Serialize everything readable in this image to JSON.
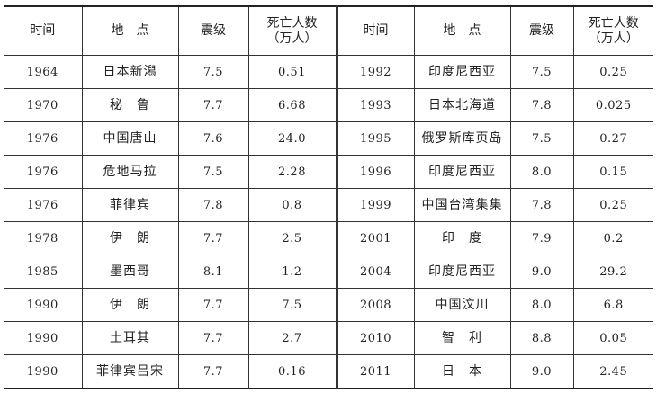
{
  "table": {
    "headers": {
      "time": "时间",
      "place": "地　点",
      "magnitude": "震级",
      "deaths_line1": "死亡人数",
      "deaths_line2": "（万人）"
    },
    "rows": [
      {
        "left": {
          "year": "1964",
          "place": "日本新潟",
          "mag": "7.5",
          "deaths": "0.51"
        },
        "right": {
          "year": "1992",
          "place": "印度尼西亚",
          "mag": "7.5",
          "deaths": "0.25"
        }
      },
      {
        "left": {
          "year": "1970",
          "place": "秘　鲁",
          "mag": "7.7",
          "deaths": "6.68"
        },
        "right": {
          "year": "1993",
          "place": "日本北海道",
          "mag": "7.8",
          "deaths": "0.025"
        }
      },
      {
        "left": {
          "year": "1976",
          "place": "中国唐山",
          "mag": "7.6",
          "deaths": "24.0"
        },
        "right": {
          "year": "1995",
          "place": "俄罗斯库页岛",
          "mag": "7.5",
          "deaths": "0.27"
        }
      },
      {
        "left": {
          "year": "1976",
          "place": "危地马拉",
          "mag": "7.5",
          "deaths": "2.28"
        },
        "right": {
          "year": "1996",
          "place": "印度尼西亚",
          "mag": "8.0",
          "deaths": "0.15"
        }
      },
      {
        "left": {
          "year": "1976",
          "place": "菲律宾",
          "mag": "7.8",
          "deaths": "0.8"
        },
        "right": {
          "year": "1999",
          "place": "中国台湾集集",
          "mag": "7.8",
          "deaths": "0.25"
        }
      },
      {
        "left": {
          "year": "1978",
          "place": "伊　朗",
          "mag": "7.7",
          "deaths": "2.5"
        },
        "right": {
          "year": "2001",
          "place": "印　度",
          "mag": "7.9",
          "deaths": "0.2"
        }
      },
      {
        "left": {
          "year": "1985",
          "place": "墨西哥",
          "mag": "8.1",
          "deaths": "1.2"
        },
        "right": {
          "year": "2004",
          "place": "印度尼西亚",
          "mag": "9.0",
          "deaths": "29.2"
        }
      },
      {
        "left": {
          "year": "1990",
          "place": "伊　朗",
          "mag": "7.7",
          "deaths": "7.5"
        },
        "right": {
          "year": "2008",
          "place": "中国汶川",
          "mag": "8.0",
          "deaths": "6.8"
        }
      },
      {
        "left": {
          "year": "1990",
          "place": "土耳其",
          "mag": "7.7",
          "deaths": "2.7"
        },
        "right": {
          "year": "2010",
          "place": "智　利",
          "mag": "8.8",
          "deaths": "0.05"
        }
      },
      {
        "left": {
          "year": "1990",
          "place": "菲律宾吕宋",
          "mag": "7.7",
          "deaths": "0.16"
        },
        "right": {
          "year": "2011",
          "place": "日　本",
          "mag": "9.0",
          "deaths": "2.45"
        }
      }
    ]
  }
}
